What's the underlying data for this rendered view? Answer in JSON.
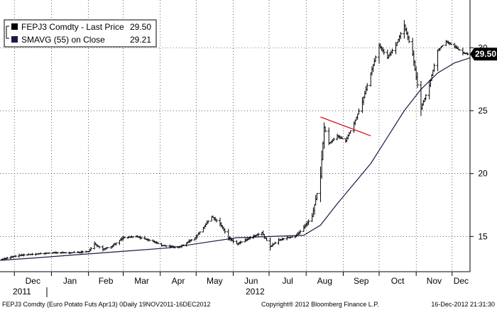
{
  "legend": {
    "price_label": "FEPJ3 Comdty - Last Price",
    "price_value": "29.50",
    "ma_label": "SMAVG (55) on Close",
    "ma_value": "29.21"
  },
  "last_price_badge": "29.50",
  "footer": {
    "left": "FEPJ3 Comdty (Euro Potato Futs  Apr13) 0Daily 19NOV2011-16DEC2012",
    "center": "Copyright® 2012 Bloomberg Finance L.P.",
    "right": "16-Dec-2012 21:31:30"
  },
  "year_labels": [
    "2011",
    "2012"
  ],
  "colors": {
    "price": "#000000",
    "ma": "#1a1a4a",
    "trendline": "#cc0000",
    "badge": "#000000",
    "grid": "#000000"
  },
  "chart_data": {
    "type": "line",
    "y_ticks": [
      15,
      20,
      25,
      30
    ],
    "y_tick_labels": [
      "15",
      "20",
      "25",
      "30"
    ],
    "ylim": [
      12.2,
      33.8
    ],
    "x_tick_labels": [
      "Dec",
      "Jan",
      "Feb",
      "Mar",
      "Apr",
      "May",
      "Jun",
      "Jul",
      "Aug",
      "Sep",
      "Oct",
      "Nov",
      "Dec"
    ],
    "x_range": [
      "2011-11-19",
      "2012-12-16"
    ],
    "grid": true,
    "legend_position": "top-left",
    "series": [
      {
        "name": "FEPJ3 Comdty - Last Price",
        "style": "ohlc",
        "x": [
          "2011-11-21",
          "2011-12-05",
          "2011-12-19",
          "2012-01-02",
          "2012-01-16",
          "2012-02-01",
          "2012-02-06",
          "2012-02-13",
          "2012-02-20",
          "2012-03-01",
          "2012-03-12",
          "2012-03-26",
          "2012-04-02",
          "2012-04-16",
          "2012-04-30",
          "2012-05-07",
          "2012-05-14",
          "2012-05-21",
          "2012-05-28",
          "2012-06-04",
          "2012-06-11",
          "2012-06-18",
          "2012-06-25",
          "2012-07-02",
          "2012-07-09",
          "2012-07-16",
          "2012-07-23",
          "2012-07-30",
          "2012-08-06",
          "2012-08-13",
          "2012-08-16",
          "2012-08-20",
          "2012-08-27",
          "2012-09-03",
          "2012-09-10",
          "2012-09-17",
          "2012-09-24",
          "2012-10-01",
          "2012-10-08",
          "2012-10-15",
          "2012-10-22",
          "2012-10-29",
          "2012-11-05",
          "2012-11-12",
          "2012-11-19",
          "2012-11-26",
          "2012-12-03",
          "2012-12-10",
          "2012-12-14"
        ],
        "values": [
          13.2,
          13.5,
          13.6,
          13.7,
          13.7,
          13.8,
          14.4,
          14.0,
          14.2,
          14.9,
          15.0,
          14.6,
          14.3,
          14.1,
          14.9,
          15.7,
          16.6,
          16.0,
          14.9,
          14.4,
          14.7,
          15.0,
          15.3,
          14.2,
          14.7,
          14.9,
          15.0,
          15.7,
          16.6,
          19.8,
          23.7,
          22.4,
          23.0,
          22.6,
          24.0,
          25.7,
          28.0,
          30.2,
          29.2,
          30.2,
          31.8,
          29.5,
          25.2,
          27.0,
          29.8,
          30.5,
          30.1,
          29.6,
          29.5
        ]
      },
      {
        "name": "SMAVG (55) on Close",
        "style": "line",
        "x": [
          "2011-11-19",
          "2011-12-19",
          "2012-01-16",
          "2012-02-13",
          "2012-03-12",
          "2012-04-09",
          "2012-05-07",
          "2012-06-04",
          "2012-07-02",
          "2012-07-30",
          "2012-08-13",
          "2012-08-27",
          "2012-09-10",
          "2012-09-24",
          "2012-10-08",
          "2012-10-22",
          "2012-11-05",
          "2012-11-19",
          "2012-12-03",
          "2012-12-16"
        ],
        "values": [
          13.1,
          13.3,
          13.5,
          13.7,
          13.9,
          14.1,
          14.5,
          14.9,
          15.0,
          15.1,
          15.9,
          17.6,
          19.2,
          20.8,
          22.9,
          25.0,
          26.7,
          28.0,
          28.8,
          29.2
        ]
      }
    ],
    "trendline": {
      "x": [
        "2012-08-13",
        "2012-09-24"
      ],
      "y": [
        24.5,
        23.0
      ]
    }
  }
}
